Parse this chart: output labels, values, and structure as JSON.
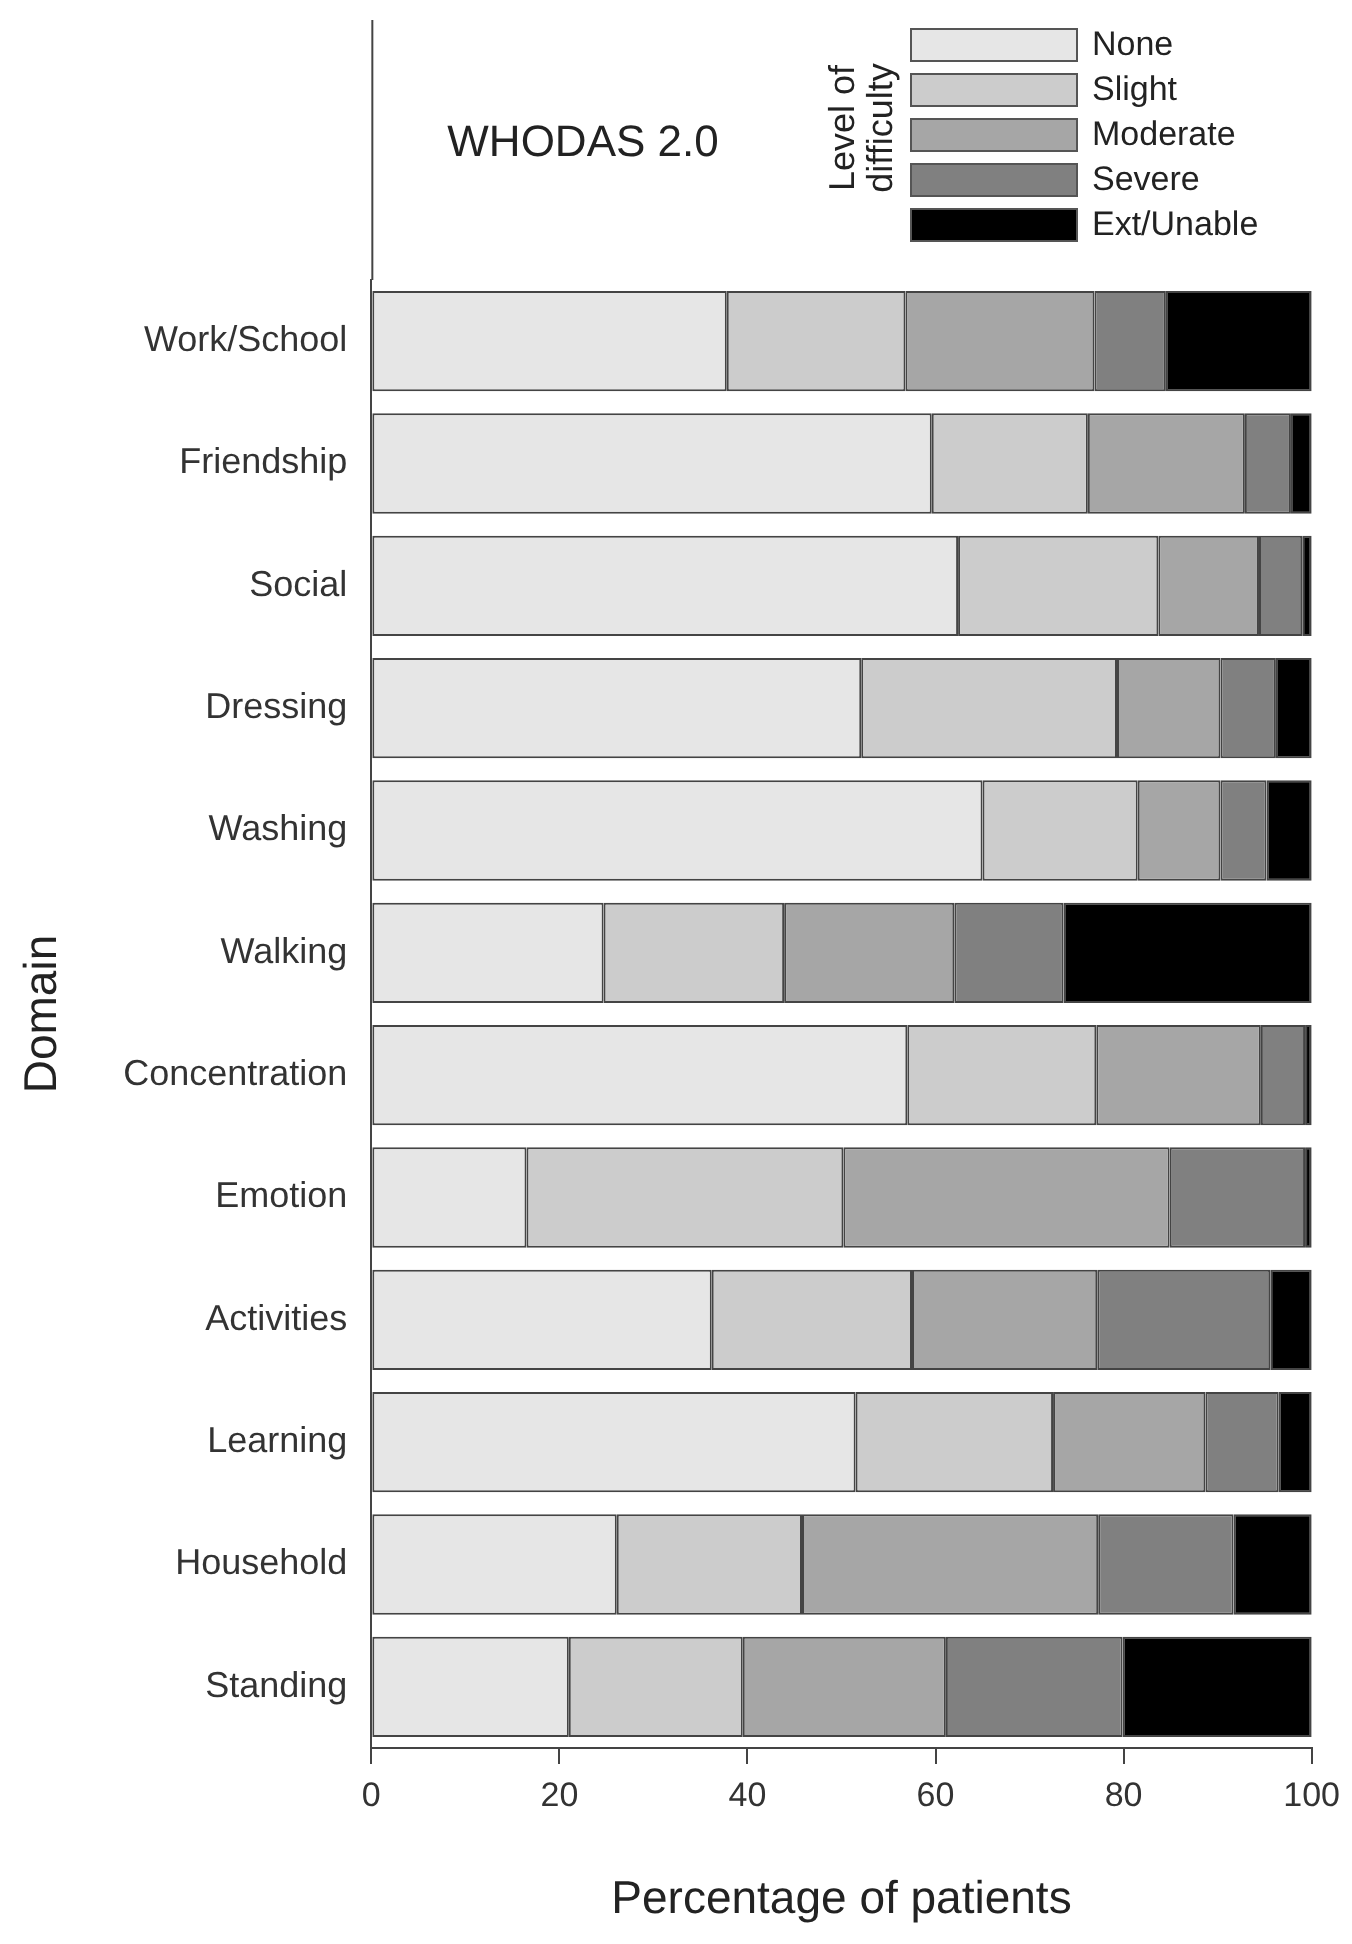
{
  "chart_data": {
    "type": "bar",
    "orientation": "horizontal",
    "stacked": true,
    "title": "WHODAS 2.0",
    "xlabel": "Percentage of patients",
    "ylabel": "Domain",
    "legend_title": "Level of difficulty",
    "legend": "top right",
    "grid": false,
    "categories": [
      "Work/School",
      "Friendship",
      "Social",
      "Dressing",
      "Washing",
      "Walking",
      "Concentration",
      "Emotion",
      "Activities",
      "Learning",
      "Household",
      "Standing"
    ],
    "xlim": [
      0,
      100
    ],
    "xticks": [
      0,
      20,
      40,
      60,
      80,
      100
    ],
    "series": [
      {
        "name": "None",
        "color": "#e6e6e6",
        "values": [
          37.8,
          59.6,
          62.4,
          52.1,
          65.0,
          24.7,
          57.0,
          16.5,
          36.2,
          51.5,
          26.1,
          21.0
        ]
      },
      {
        "name": "Slight",
        "color": "#cccccc",
        "values": [
          19.0,
          16.6,
          21.3,
          27.2,
          16.5,
          19.2,
          20.1,
          33.7,
          21.3,
          21.0,
          19.7,
          18.5
        ]
      },
      {
        "name": "Moderate",
        "color": "#a6a6a6",
        "values": [
          20.1,
          16.7,
          10.7,
          11.0,
          8.8,
          18.1,
          17.5,
          34.7,
          19.7,
          16.2,
          31.5,
          21.6
        ]
      },
      {
        "name": "Severe",
        "color": "#808080",
        "values": [
          7.6,
          4.9,
          4.6,
          5.9,
          4.9,
          11.6,
          4.7,
          14.4,
          18.4,
          7.8,
          14.4,
          18.8
        ]
      },
      {
        "name": "Ext/Unable",
        "color": "#000000",
        "values": [
          15.5,
          2.2,
          1.0,
          3.8,
          4.8,
          26.4,
          0.7,
          0.7,
          4.4,
          3.5,
          8.3,
          20.1
        ]
      }
    ]
  }
}
